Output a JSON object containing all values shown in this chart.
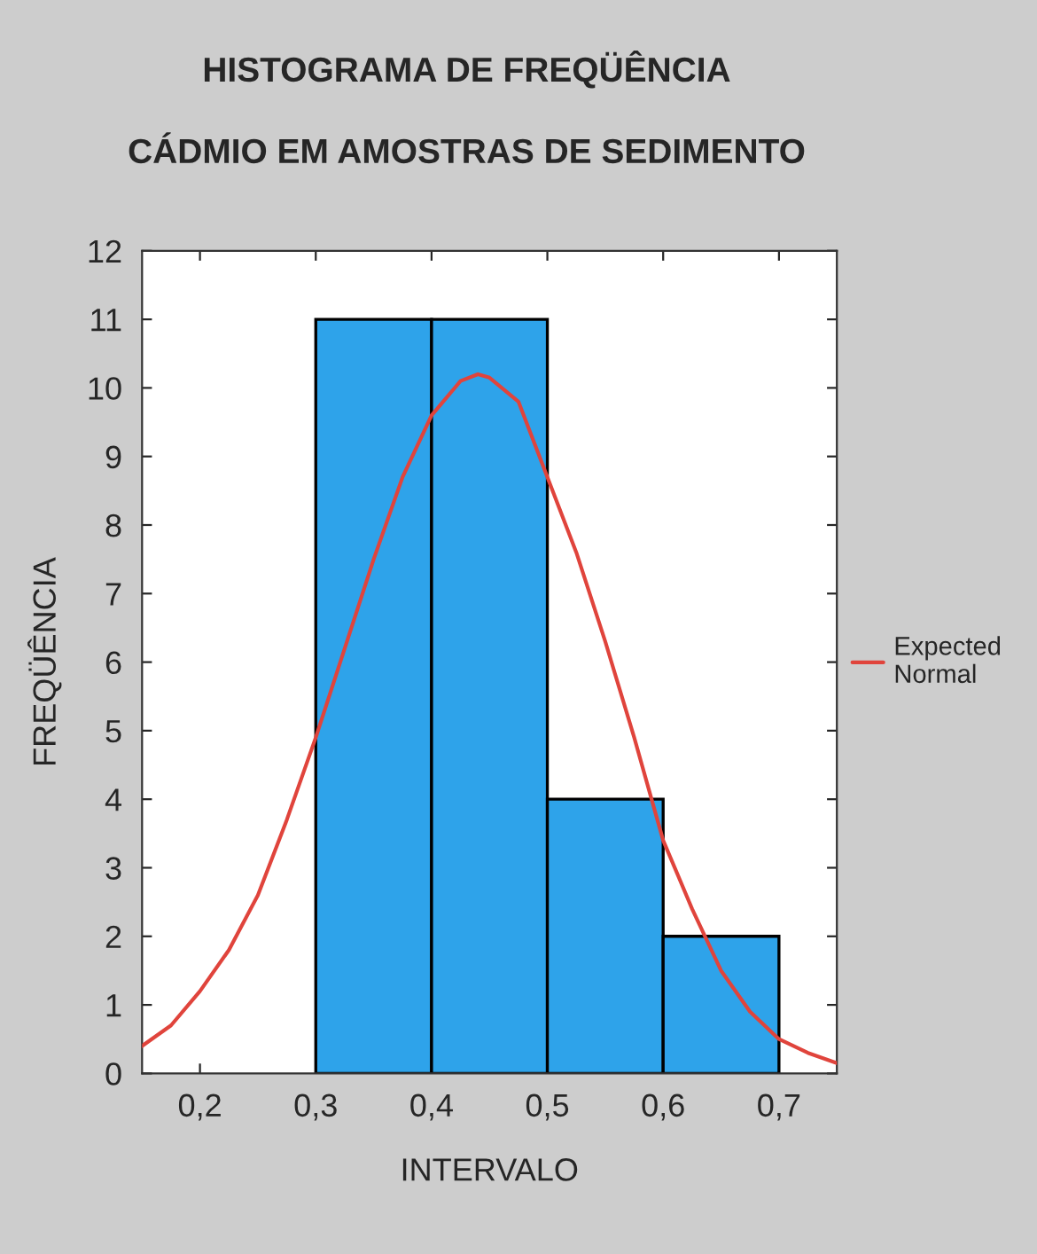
{
  "chart_data": {
    "type": "histogram",
    "title": "HISTOGRAMA DE FREQÜÊNCIA",
    "subtitle": "CÁDMIO EM AMOSTRAS DE SEDIMENTO",
    "xlabel": "INTERVALO",
    "ylabel": "FREQÜÊNCIA",
    "bins": [
      0.2,
      0.3,
      0.4,
      0.5,
      0.6,
      0.7
    ],
    "values": [
      0,
      11,
      11,
      4,
      2
    ],
    "color": "#2ea3ea",
    "series": [
      {
        "name": "Expected Normal",
        "type": "line",
        "color": "#e0443c",
        "x": [
          0.15,
          0.175,
          0.2,
          0.225,
          0.25,
          0.275,
          0.3,
          0.325,
          0.35,
          0.375,
          0.4,
          0.425,
          0.44,
          0.45,
          0.475,
          0.5,
          0.525,
          0.55,
          0.575,
          0.6,
          0.625,
          0.65,
          0.675,
          0.7,
          0.725,
          0.75
        ],
        "values": [
          0.4,
          0.7,
          1.2,
          1.8,
          2.6,
          3.7,
          4.9,
          6.2,
          7.5,
          8.7,
          9.6,
          10.1,
          10.2,
          10.15,
          9.8,
          8.7,
          7.6,
          6.3,
          4.9,
          3.4,
          2.4,
          1.5,
          0.9,
          0.5,
          0.3,
          0.15
        ]
      }
    ],
    "xlim": [
      0.15,
      0.75
    ],
    "xticks": [
      {
        "value": 0.2,
        "label": "0,2"
      },
      {
        "value": 0.3,
        "label": "0,3"
      },
      {
        "value": 0.4,
        "label": "0,4"
      },
      {
        "value": 0.5,
        "label": "0,5"
      },
      {
        "value": 0.6,
        "label": "0,6"
      },
      {
        "value": 0.7,
        "label": "0,7"
      }
    ],
    "ylim": [
      0,
      12
    ],
    "yticks": [
      0,
      1,
      2,
      3,
      4,
      5,
      6,
      7,
      8,
      9,
      10,
      11,
      12
    ],
    "grid": false,
    "legend": "right"
  }
}
